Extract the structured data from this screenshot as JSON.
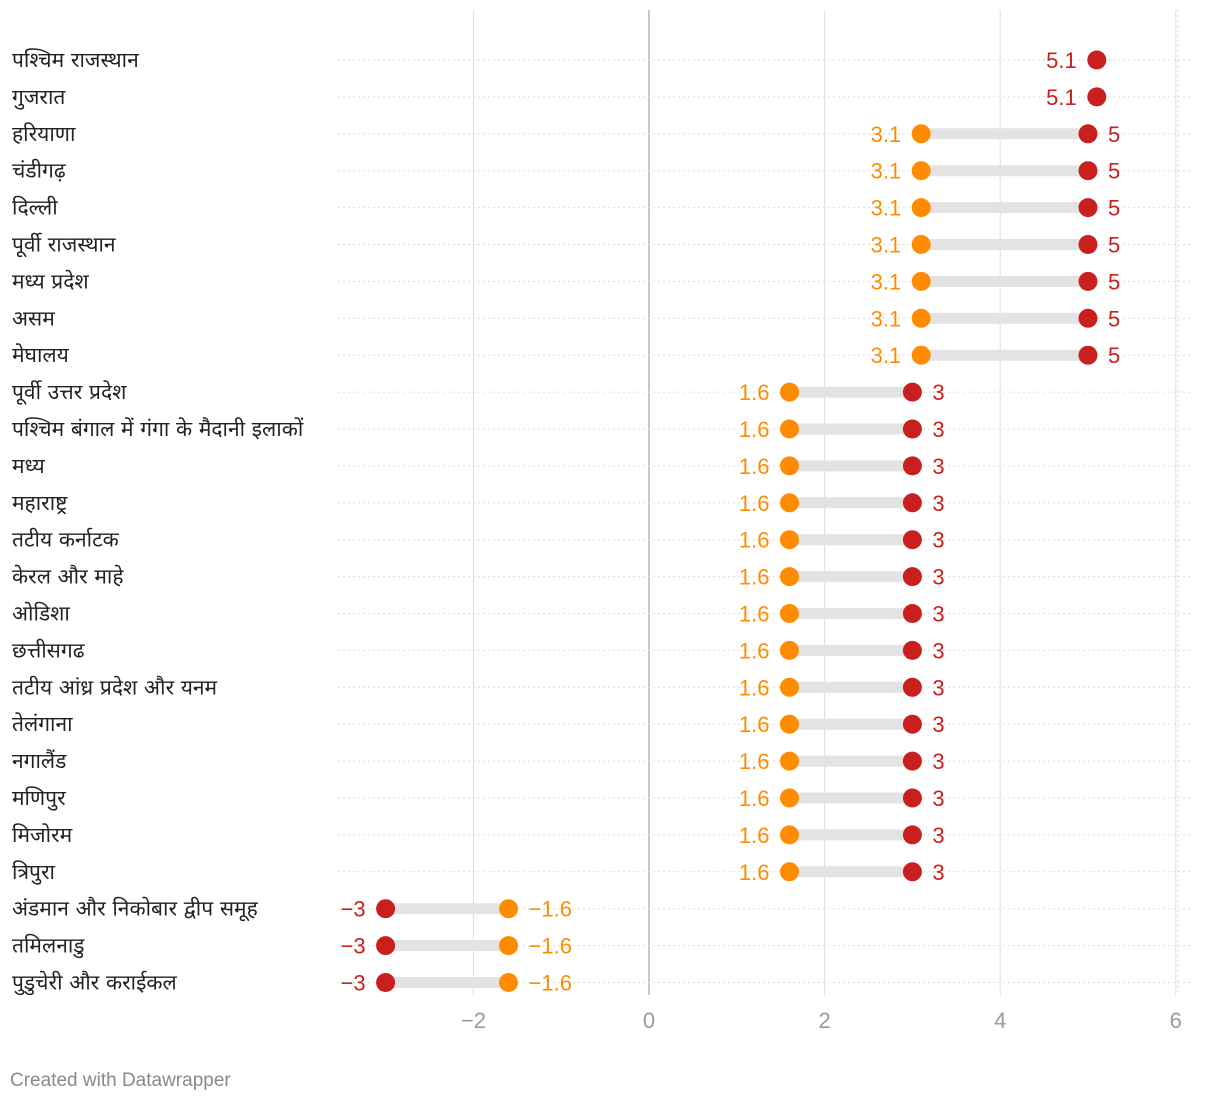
{
  "footer": "Created with Datawrapper",
  "colors": {
    "earlier": "#ff8c00",
    "latest": "#c91f1f",
    "connector": "#e3e3e3",
    "grid": "#dddddd",
    "zero_line": "#bbbbbb",
    "row_rule": "#dddddd"
  },
  "chart_data": {
    "type": "dot-range",
    "title": "",
    "xlabel": "",
    "ylabel": "",
    "xlim": [
      -3.55,
      6.15
    ],
    "x_ticks": [
      {
        "value": -2,
        "label": "−2"
      },
      {
        "value": 0,
        "label": "0"
      },
      {
        "value": 2,
        "label": "2"
      },
      {
        "value": 4,
        "label": "4"
      },
      {
        "value": 6,
        "label": "6"
      }
    ],
    "series": [
      {
        "name": "earlier",
        "color": "#ff8c00"
      },
      {
        "name": "latest",
        "color": "#c91f1f"
      }
    ],
    "rows": [
      {
        "label": "पश्चिम राजस्थान",
        "earlier": null,
        "earlier_label": "",
        "latest": 5.1,
        "latest_label": "5.1"
      },
      {
        "label": "गुजरात",
        "earlier": null,
        "earlier_label": "",
        "latest": 5.1,
        "latest_label": "5.1"
      },
      {
        "label": "हरियाणा",
        "earlier": 3.1,
        "earlier_label": "3.1",
        "latest": 5,
        "latest_label": "5"
      },
      {
        "label": "चंडीगढ़",
        "earlier": 3.1,
        "earlier_label": "3.1",
        "latest": 5,
        "latest_label": "5"
      },
      {
        "label": "दिल्ली",
        "earlier": 3.1,
        "earlier_label": "3.1",
        "latest": 5,
        "latest_label": "5"
      },
      {
        "label": "पूर्वी राजस्थान",
        "earlier": 3.1,
        "earlier_label": "3.1",
        "latest": 5,
        "latest_label": "5"
      },
      {
        "label": "मध्य प्रदेश",
        "earlier": 3.1,
        "earlier_label": "3.1",
        "latest": 5,
        "latest_label": "5"
      },
      {
        "label": "असम",
        "earlier": 3.1,
        "earlier_label": "3.1",
        "latest": 5,
        "latest_label": "5"
      },
      {
        "label": "मेघालय",
        "earlier": 3.1,
        "earlier_label": "3.1",
        "latest": 5,
        "latest_label": "5"
      },
      {
        "label": "पूर्वी उत्तर प्रदेश",
        "earlier": 1.6,
        "earlier_label": "1.6",
        "latest": 3,
        "latest_label": "3"
      },
      {
        "label": "पश्चिम बंगाल में गंगा के मैदानी इलाकों",
        "earlier": 1.6,
        "earlier_label": "1.6",
        "latest": 3,
        "latest_label": "3"
      },
      {
        "label": "मध्य",
        "earlier": 1.6,
        "earlier_label": "1.6",
        "latest": 3,
        "latest_label": "3"
      },
      {
        "label": "महाराष्ट्र",
        "earlier": 1.6,
        "earlier_label": "1.6",
        "latest": 3,
        "latest_label": "3"
      },
      {
        "label": "तटीय कर्नाटक",
        "earlier": 1.6,
        "earlier_label": "1.6",
        "latest": 3,
        "latest_label": "3"
      },
      {
        "label": "केरल और माहे",
        "earlier": 1.6,
        "earlier_label": "1.6",
        "latest": 3,
        "latest_label": "3"
      },
      {
        "label": "ओडिशा",
        "earlier": 1.6,
        "earlier_label": "1.6",
        "latest": 3,
        "latest_label": "3"
      },
      {
        "label": "छत्तीसगढ",
        "earlier": 1.6,
        "earlier_label": "1.6",
        "latest": 3,
        "latest_label": "3"
      },
      {
        "label": "तटीय आंध्र प्रदेश और यनम",
        "earlier": 1.6,
        "earlier_label": "1.6",
        "latest": 3,
        "latest_label": "3"
      },
      {
        "label": "तेलंगाना",
        "earlier": 1.6,
        "earlier_label": "1.6",
        "latest": 3,
        "latest_label": "3"
      },
      {
        "label": "नगालैंड",
        "earlier": 1.6,
        "earlier_label": "1.6",
        "latest": 3,
        "latest_label": "3"
      },
      {
        "label": "मणिपुर",
        "earlier": 1.6,
        "earlier_label": "1.6",
        "latest": 3,
        "latest_label": "3"
      },
      {
        "label": "मिजोरम",
        "earlier": 1.6,
        "earlier_label": "1.6",
        "latest": 3,
        "latest_label": "3"
      },
      {
        "label": "त्रिपुरा",
        "earlier": 1.6,
        "earlier_label": "1.6",
        "latest": 3,
        "latest_label": "3"
      },
      {
        "label": "अंडमान और निकोबार द्वीप समूह",
        "earlier": -1.6,
        "earlier_label": "−1.6",
        "latest": -3,
        "latest_label": "−3"
      },
      {
        "label": "तमिलनाडु",
        "earlier": -1.6,
        "earlier_label": "−1.6",
        "latest": -3,
        "latest_label": "−3"
      },
      {
        "label": "पुडुचेरी और कराईकल",
        "earlier": -1.6,
        "earlier_label": "−1.6",
        "latest": -3,
        "latest_label": "−3"
      }
    ]
  }
}
